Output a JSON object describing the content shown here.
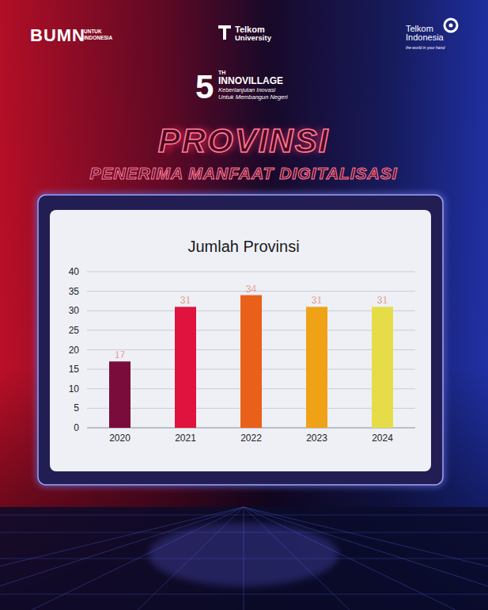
{
  "logos": {
    "bumn": "BUMN",
    "bumn_tagline": [
      "UNTUK",
      "INDONESIA"
    ],
    "telkom_university": [
      "Telkom",
      "University"
    ],
    "telkom_indonesia": [
      "Telkom",
      "Indonesia"
    ],
    "telkom_indonesia_tagline": "the world in your hand"
  },
  "event": {
    "edition": "5",
    "edition_suffix": "TH",
    "name": "INNOVILLAGE",
    "tagline": [
      "Keberlanjutan Inovasi",
      "Untuk Membangun Negeri"
    ]
  },
  "heading": {
    "title": "PROVINSI",
    "subtitle": "PENERIMA MANFAAT DIGITALISASI"
  },
  "chart_data": {
    "type": "bar",
    "title": "Jumlah Provinsi",
    "categories": [
      "2020",
      "2021",
      "2022",
      "2023",
      "2024"
    ],
    "values": [
      17,
      31,
      34,
      31,
      31
    ],
    "colors": [
      "#7a0c3c",
      "#e0123e",
      "#e8601a",
      "#f0a216",
      "#e6dc48"
    ],
    "ylim": [
      0,
      40
    ],
    "yticks": [
      0,
      5,
      10,
      15,
      20,
      25,
      30,
      35,
      40
    ],
    "grid": true,
    "data_labels": true
  }
}
